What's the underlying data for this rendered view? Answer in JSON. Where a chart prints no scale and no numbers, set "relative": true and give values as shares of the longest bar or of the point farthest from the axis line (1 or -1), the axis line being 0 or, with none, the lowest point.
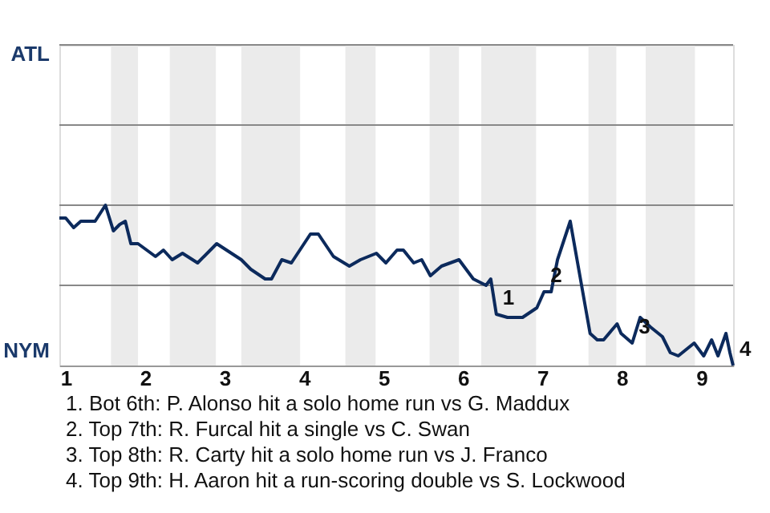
{
  "chart_data": {
    "type": "line",
    "relative": true,
    "x": [
      0.92,
      1.0,
      1.1,
      1.19,
      1.37,
      1.5,
      1.6,
      1.68,
      1.75,
      1.82,
      1.91,
      2.13,
      2.23,
      2.34,
      2.47,
      2.66,
      2.9,
      3.21,
      3.33,
      3.51,
      3.59,
      3.72,
      3.84,
      4.08,
      4.18,
      4.37,
      4.57,
      4.71,
      4.91,
      5.03,
      5.17,
      5.25,
      5.38,
      5.48,
      5.59,
      5.73,
      5.95,
      6.13,
      6.29,
      6.35,
      6.42,
      6.56,
      6.75,
      6.93,
      7.02,
      7.11,
      7.19,
      7.35,
      7.6,
      7.69,
      7.77,
      7.94,
      7.99,
      8.13,
      8.23,
      8.36,
      8.51,
      8.61,
      8.71,
      8.86,
      8.91,
      9.03,
      9.13,
      9.21,
      9.31,
      9.36,
      9.4
    ],
    "series": [
      {
        "color": "#0c2a5c",
        "values": [
          0.92,
          0.92,
          0.86,
          0.9,
          0.9,
          1.0,
          0.84,
          0.88,
          0.9,
          0.76,
          0.76,
          0.68,
          0.72,
          0.66,
          0.7,
          0.64,
          0.76,
          0.66,
          0.6,
          0.54,
          0.54,
          0.66,
          0.64,
          0.82,
          0.82,
          0.68,
          0.62,
          0.66,
          0.7,
          0.64,
          0.72,
          0.72,
          0.64,
          0.66,
          0.56,
          0.62,
          0.66,
          0.54,
          0.5,
          0.54,
          0.32,
          0.3,
          0.3,
          0.36,
          0.46,
          0.46,
          0.66,
          0.9,
          0.2,
          0.16,
          0.16,
          0.26,
          0.2,
          0.14,
          0.3,
          0.24,
          0.18,
          0.08,
          0.06,
          0.12,
          0.14,
          0.06,
          0.16,
          0.06,
          0.2,
          0.08,
          0
        ]
      }
    ],
    "xlim": [
      0.92,
      9.4
    ],
    "xticks": [
      1,
      2,
      3,
      4,
      5,
      6,
      7,
      8,
      9
    ],
    "ref_lines": [
      {
        "axis": "y",
        "value": 0.5,
        "color": "#888888"
      },
      {
        "axis": "y",
        "value": 1,
        "color": "#888888"
      },
      {
        "axis": "y",
        "value": 1.5,
        "color": "#888888"
      },
      {
        "axis": "y",
        "value": 2,
        "color": "#888888"
      }
    ],
    "bands": [
      {
        "axis": "x",
        "from": 1.57,
        "to": 1.91,
        "color": "#ebebeb"
      },
      {
        "axis": "x",
        "from": 2.31,
        "to": 2.89,
        "color": "#ebebeb"
      },
      {
        "axis": "x",
        "from": 3.21,
        "to": 3.95,
        "color": "#ebebeb"
      },
      {
        "axis": "x",
        "from": 4.52,
        "to": 4.9,
        "color": "#ebebeb"
      },
      {
        "axis": "x",
        "from": 5.58,
        "to": 5.95,
        "color": "#ebebeb"
      },
      {
        "axis": "x",
        "from": 6.23,
        "to": 6.92,
        "color": "#ebebeb"
      },
      {
        "axis": "x",
        "from": 7.58,
        "to": 7.93,
        "color": "#ebebeb"
      },
      {
        "axis": "x",
        "from": 8.3,
        "to": 8.92,
        "color": "#ebebeb"
      }
    ],
    "annotations": [
      "ATL",
      "NYM",
      {
        "text": "1",
        "x": 6.42,
        "y": 0.32
      },
      {
        "text": "2",
        "x": 7.02,
        "y": 0.46
      },
      {
        "text": "3",
        "x": 8.13,
        "y": 0.14
      },
      {
        "text": "4",
        "x": 9.4,
        "y": 0
      },
      "1. Bot 6th: P. Alonso hit a solo home run vs G. Maddux",
      "2. Top 7th: R. Furcal hit a single vs C. Swan",
      "3. Top 8th: R. Carty hit a solo home run vs J. Franco",
      "4. Top 9th: H. Aaron hit a run-scoring double vs S. Lockwood"
    ]
  }
}
